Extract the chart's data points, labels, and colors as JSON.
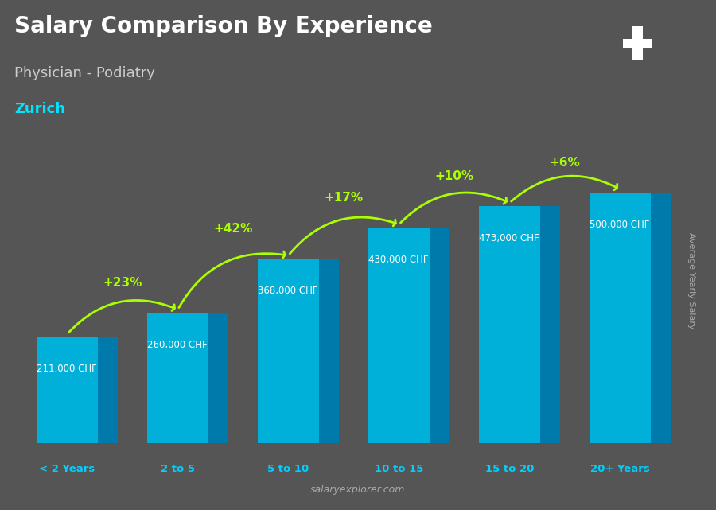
{
  "categories": [
    "< 2 Years",
    "2 to 5",
    "5 to 10",
    "10 to 15",
    "15 to 20",
    "20+ Years"
  ],
  "values": [
    211000,
    260000,
    368000,
    430000,
    473000,
    500000
  ],
  "labels": [
    "211,000 CHF",
    "260,000 CHF",
    "368,000 CHF",
    "430,000 CHF",
    "473,000 CHF",
    "500,000 CHF"
  ],
  "pct_changes": [
    "+23%",
    "+42%",
    "+17%",
    "+10%",
    "+6%"
  ],
  "title_line1": "Salary Comparison By Experience",
  "title_line2": "Physician - Podiatry",
  "city": "Zurich",
  "ylabel": "Average Yearly Salary",
  "watermark": "salaryexplorer.com",
  "bar_color_top": "#00cfff",
  "bar_color_side": "#0099cc",
  "bar_color_front": "#00b8e6",
  "bg_color": "#555555",
  "title_color": "#ffffff",
  "subtitle_color": "#cccccc",
  "city_color": "#00e5ff",
  "label_color": "#ffffff",
  "pct_color": "#aaff00",
  "watermark_color": "#aaaaaa",
  "cat_color": "#00cfff",
  "flag_bg": "#cc2222",
  "flag_cross": "#ffffff"
}
